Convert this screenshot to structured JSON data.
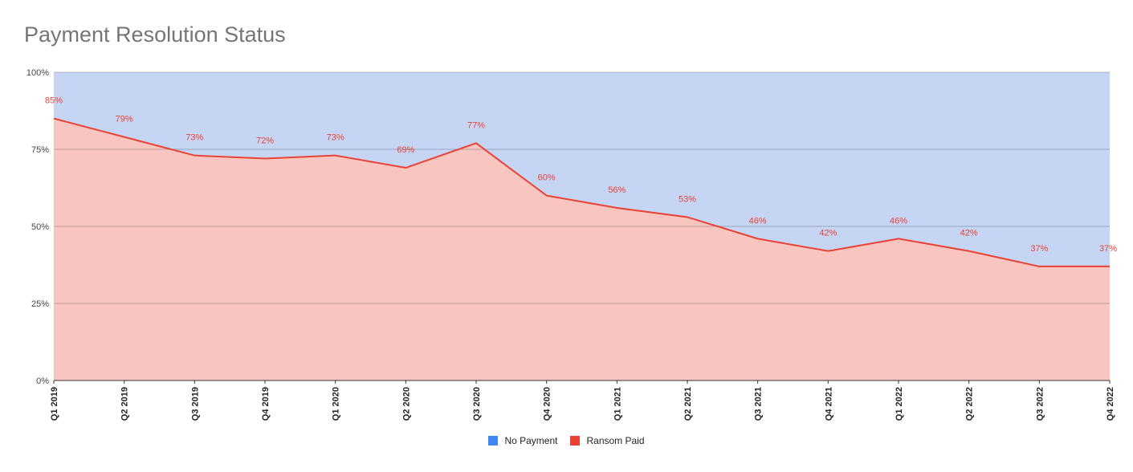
{
  "chart_data": {
    "type": "area",
    "title": "Payment Resolution Status",
    "categories": [
      "Q1 2019",
      "Q2 2019",
      "Q3 2019",
      "Q4 2019",
      "Q1 2020",
      "Q2 2020",
      "Q3 2020",
      "Q4 2020",
      "Q1 2021",
      "Q2 2021",
      "Q3 2021",
      "Q4 2021",
      "Q1 2022",
      "Q2 2022",
      "Q3 2022",
      "Q4 2022"
    ],
    "y_ticks": [
      "0%",
      "25%",
      "50%",
      "75%",
      "100%"
    ],
    "ylim": [
      0,
      100
    ],
    "stacked": "100%",
    "series": [
      {
        "name": "Ransom Paid",
        "values": [
          85,
          79,
          73,
          72,
          73,
          69,
          77,
          60,
          56,
          53,
          46,
          42,
          46,
          42,
          37,
          37
        ],
        "labels": [
          "85%",
          "79%",
          "73%",
          "72%",
          "73%",
          "69%",
          "77%",
          "60%",
          "56%",
          "53%",
          "46%",
          "42%",
          "46%",
          "42%",
          "37%",
          "37%"
        ],
        "line_color": "#ea4335",
        "fill_color": "#f8c5c1"
      },
      {
        "name": "No Payment",
        "values": [
          15,
          21,
          27,
          28,
          27,
          31,
          23,
          40,
          44,
          47,
          54,
          58,
          54,
          58,
          63,
          63
        ],
        "fill_color": "#c5d5f3"
      }
    ],
    "legend": {
      "position": "bottom",
      "items": [
        {
          "name": "No Payment",
          "color": "#4285f4"
        },
        {
          "name": "Ransom Paid",
          "color": "#ea4335"
        }
      ]
    },
    "grid": true
  }
}
